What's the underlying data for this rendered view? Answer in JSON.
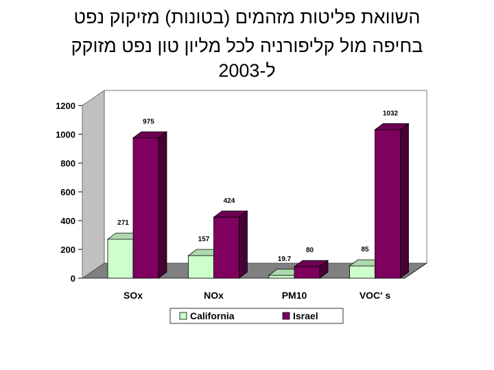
{
  "title_lines": [
    "השוואת פליטות מזהמים (בטונות) מזיקוק נפט",
    "בחיפה מול קליפורניה לכל מליון טון נפט מזוקק",
    "ל-2003"
  ],
  "chart_data": {
    "type": "bar",
    "variant": "3d-clustered",
    "title": "השוואת פליטות מזהמים (בטונות) מזיקוק נפט בחיפה מול קליפורניה לכל מליון טון נפט מזוקק ל-2003",
    "categories": [
      "SOx",
      "NOx",
      "PM10",
      "VOC' s"
    ],
    "series": [
      {
        "name": "California",
        "values": [
          271,
          157,
          19.7,
          85
        ],
        "labels": [
          "271",
          "157",
          "19.7",
          "85"
        ],
        "color": "#ccffcc"
      },
      {
        "name": "Israel",
        "values": [
          975,
          424,
          80,
          1032
        ],
        "labels": [
          "975",
          "424",
          "80",
          "1032"
        ],
        "color": "#800060"
      }
    ],
    "yticks": [
      "0",
      "200",
      "400",
      "600",
      "800",
      "1000",
      "1200"
    ],
    "ylim": [
      0,
      1200
    ],
    "xlabel": "",
    "ylabel": "",
    "legend": "bottom"
  }
}
